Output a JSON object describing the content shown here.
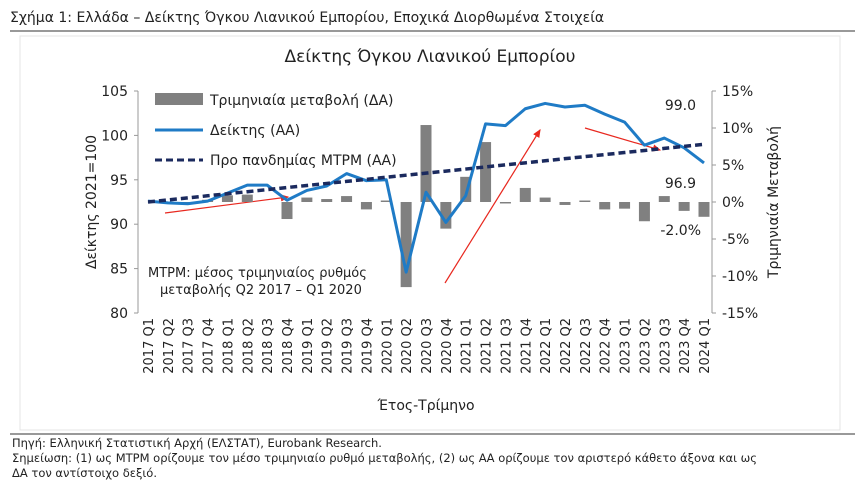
{
  "caption": "Σχήμα 1: Ελλάδα – Δείκτης Όγκου Λιανικού Εμπορίου, Εποχικά Διορθωμένα Στοιχεία",
  "chart_data": {
    "type": "bar-line",
    "title": "Δείκτης Όγκου Λιανικού Εμπορίου",
    "y_label": "Δείκτης 2021=100",
    "y2_label": "Τριμηνιαία Μεταβολή",
    "x_label": "Έτος-Τρίμηνο",
    "note": [
      "ΜΤΡΜ: μέσος τριμηνιαίος ρυθμός",
      "μεταβολής Q2 2017 – Q1 2020"
    ],
    "categories": [
      "2017 Q1",
      "2017 Q2",
      "2017 Q3",
      "2017 Q4",
      "2018 Q1",
      "2018 Q2",
      "2018 Q3",
      "2018 Q4",
      "2019 Q1",
      "2019 Q2",
      "2019 Q3",
      "2019 Q4",
      "2020 Q1",
      "2020 Q2",
      "2020 Q3",
      "2020 Q4",
      "2021 Q1",
      "2021 Q2",
      "2021 Q3",
      "2021 Q4",
      "2022 Q1",
      "2022 Q2",
      "2022 Q3",
      "2022 Q4",
      "2023 Q1",
      "2023 Q2",
      "2023 Q3",
      "2023 Q4",
      "2024 Q1"
    ],
    "ylim": [
      80,
      105
    ],
    "yticks": [
      80,
      85,
      90,
      95,
      100,
      105
    ],
    "y2lim": [
      -15,
      15
    ],
    "y2ticks": [
      {
        "value": -15,
        "label": "-15%"
      },
      {
        "value": -10,
        "label": "-10%"
      },
      {
        "value": -5,
        "label": "-5%"
      },
      {
        "value": 0,
        "label": "0%"
      },
      {
        "value": 5,
        "label": "5%"
      },
      {
        "value": 10,
        "label": "10%"
      },
      {
        "value": 15,
        "label": "15%"
      }
    ],
    "series": [
      {
        "name": "Τριμηνιαία μεταβολή (ΔΑ)",
        "type": "bar",
        "axis": "y2",
        "color": "#808080",
        "values": [
          0,
          -0.2,
          -0.1,
          0.3,
          0.9,
          1.0,
          0.0,
          -2.3,
          0.6,
          0.4,
          0.8,
          -1.0,
          0.2,
          -11.5,
          10.4,
          -3.6,
          3.4,
          8.1,
          -0.2,
          1.9,
          0.6,
          -0.4,
          0.2,
          -1.0,
          -0.9,
          -2.6,
          0.8,
          -1.2,
          -2.0
        ],
        "value_labels": [
          null,
          null,
          null,
          null,
          null,
          null,
          null,
          null,
          null,
          null,
          null,
          null,
          null,
          null,
          null,
          null,
          null,
          null,
          null,
          null,
          null,
          null,
          null,
          null,
          null,
          null,
          null,
          null,
          "-2.0%"
        ]
      },
      {
        "name": "Δείκτης (ΑΑ)",
        "type": "line",
        "color": "#1f7bc6",
        "values": [
          92.6,
          92.4,
          92.3,
          92.6,
          93.5,
          94.4,
          94.4,
          92.7,
          93.8,
          94.3,
          95.7,
          94.9,
          95.0,
          84.6,
          93.6,
          90.2,
          93.2,
          101.3,
          101.1,
          103.0,
          103.6,
          103.2,
          103.4,
          102.4,
          101.5,
          98.9,
          99.7,
          98.6,
          96.9
        ],
        "value_labels": [
          null,
          null,
          null,
          null,
          null,
          null,
          null,
          null,
          null,
          null,
          null,
          null,
          null,
          null,
          null,
          null,
          null,
          null,
          null,
          null,
          null,
          null,
          null,
          null,
          null,
          null,
          null,
          null,
          "96.9"
        ]
      },
      {
        "name": "Προ πανδημίας ΜΤΡΜ (ΑΑ)",
        "type": "line",
        "dashed": true,
        "color": "#1b2a5e",
        "values": [
          92.5,
          92.73,
          92.96,
          93.2,
          93.43,
          93.66,
          93.89,
          94.13,
          94.36,
          94.59,
          94.82,
          95.05,
          95.29,
          95.52,
          95.75,
          95.98,
          96.21,
          96.45,
          96.68,
          96.91,
          97.14,
          97.38,
          97.61,
          97.84,
          98.07,
          98.3,
          98.54,
          98.77,
          99.0
        ],
        "value_labels": [
          null,
          null,
          null,
          null,
          null,
          null,
          null,
          null,
          null,
          null,
          null,
          null,
          null,
          null,
          null,
          null,
          null,
          null,
          null,
          null,
          null,
          null,
          null,
          null,
          null,
          null,
          null,
          null,
          "99.0"
        ]
      }
    ]
  },
  "source": [
    "Πηγή: Ελληνική Στατιστική Αρχή (ΕΛΣΤΑΤ), Eurobank Research.",
    "Σημείωση: (1) ως ΜΤΡΜ ορίζουμε τον μέσο τριμηνιαίο ρυθμό μεταβολής, (2) ως ΑΑ ορίζουμε τον αριστερό κάθετο άξονα και ως",
    "ΔΑ τον αντίστοιχο δεξιό."
  ]
}
